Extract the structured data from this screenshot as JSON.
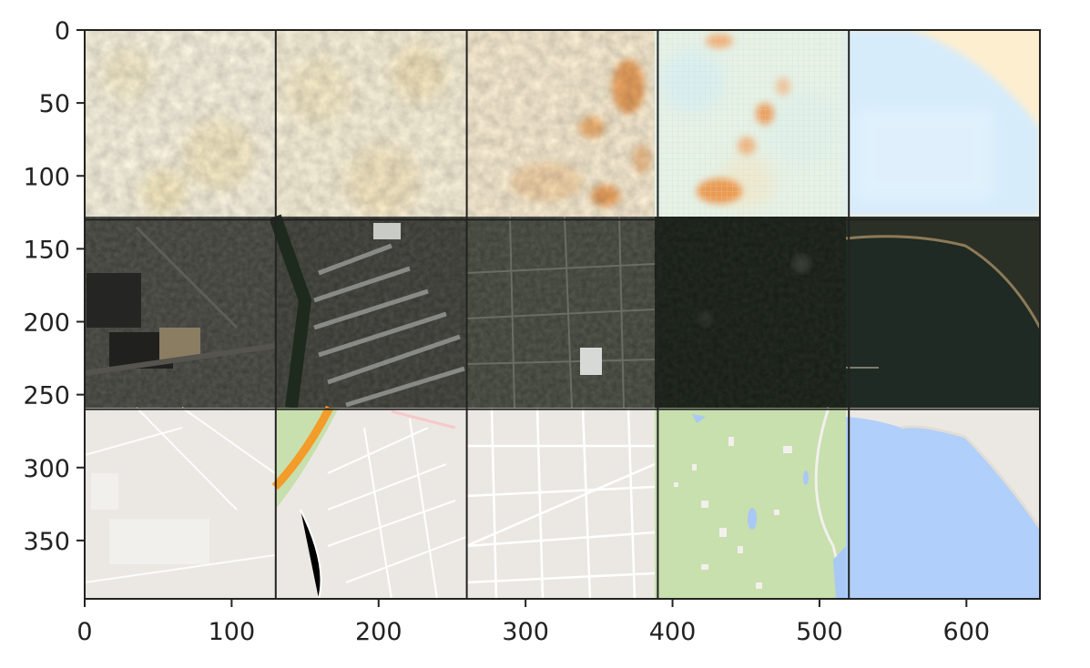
{
  "figure": {
    "kind": "image-grid-plot",
    "grid": {
      "rows": 3,
      "cols": 5
    },
    "image_extent": {
      "x": [
        0,
        650
      ],
      "y": [
        0,
        390
      ]
    },
    "x_axis": {
      "ticks": [
        0,
        100,
        200,
        300,
        400,
        500,
        600
      ],
      "tick_labels": [
        "0",
        "100",
        "200",
        "300",
        "400",
        "500",
        "600"
      ]
    },
    "y_axis": {
      "ticks": [
        0,
        50,
        100,
        150,
        200,
        250,
        300,
        350
      ],
      "tick_labels": [
        "0",
        "50",
        "100",
        "150",
        "200",
        "250",
        "300",
        "350"
      ]
    },
    "panels": [
      {
        "row": 0,
        "col": 0,
        "content": "generated-map-noise",
        "colors": [
          "#fff9e6",
          "#fdf0c8",
          "#f8e6a8"
        ]
      },
      {
        "row": 0,
        "col": 1,
        "content": "generated-map-noise",
        "colors": [
          "#fff7df",
          "#fcefc4",
          "#f3dca0"
        ]
      },
      {
        "row": 0,
        "col": 2,
        "content": "generated-map-orange-streaks",
        "colors": [
          "#fff3d8",
          "#f5c38a",
          "#e98c3a"
        ]
      },
      {
        "row": 0,
        "col": 3,
        "content": "generated-map-mottled",
        "colors": [
          "#e7f1e5",
          "#d6ecf3",
          "#f4a060"
        ]
      },
      {
        "row": 0,
        "col": 4,
        "content": "generated-map-water",
        "colors": [
          "#d6ecfb",
          "#e6f4fd",
          "#fdeed0"
        ]
      },
      {
        "row": 1,
        "col": 0,
        "content": "satellite-industrial",
        "colors": [
          "#2f302c",
          "#3b3b36",
          "#8a7d62"
        ]
      },
      {
        "row": 1,
        "col": 1,
        "content": "satellite-residential-grid",
        "colors": [
          "#34352f",
          "#8a8c88",
          "#1e2a1d"
        ]
      },
      {
        "row": 1,
        "col": 2,
        "content": "satellite-town",
        "colors": [
          "#3a3d34",
          "#5a5c52",
          "#c5c7c4"
        ]
      },
      {
        "row": 1,
        "col": 3,
        "content": "satellite-forest",
        "colors": [
          "#121811",
          "#1b2419",
          "#3a3f34"
        ]
      },
      {
        "row": 1,
        "col": 4,
        "content": "satellite-lake",
        "colors": [
          "#1e2a23",
          "#18231f",
          "#8e7a58"
        ]
      },
      {
        "row": 2,
        "col": 0,
        "content": "map-industrial",
        "colors": [
          "#ebe8e3",
          "#f2f0ec",
          "#ffffff"
        ]
      },
      {
        "row": 2,
        "col": 1,
        "content": "map-residential-highway",
        "colors": [
          "#ebe8e3",
          "#f39c2a",
          "#c8dfae"
        ]
      },
      {
        "row": 2,
        "col": 2,
        "content": "map-grid-streets",
        "colors": [
          "#ebe8e3",
          "#ffffff",
          "#f4f2ee"
        ]
      },
      {
        "row": 2,
        "col": 3,
        "content": "map-park",
        "colors": [
          "#c8dfae",
          "#f2f0ec",
          "#a9c8f5"
        ]
      },
      {
        "row": 2,
        "col": 4,
        "content": "map-water",
        "colors": [
          "#b0cffa",
          "#ebe8e3",
          "#e2ddd5"
        ]
      }
    ]
  }
}
